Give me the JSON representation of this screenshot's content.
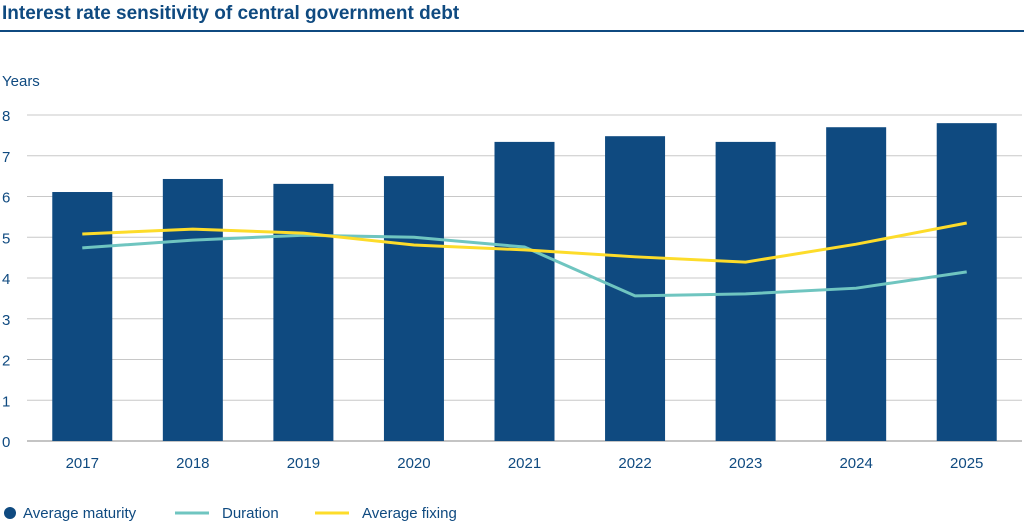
{
  "chart_data": {
    "type": "bar",
    "title": "Interest rate sensitivity of central government debt",
    "ylabel": "Years",
    "ylim": [
      0,
      8
    ],
    "yticks": [
      0,
      1,
      2,
      3,
      4,
      5,
      6,
      7,
      8
    ],
    "grid": true,
    "legend_placement": "bottom-left",
    "categories": [
      "2017",
      "2018",
      "2019",
      "2020",
      "2021",
      "2022",
      "2023",
      "2024",
      "2025"
    ],
    "series": [
      {
        "name": "Average maturity",
        "type": "bar",
        "color": "#0f4a80",
        "values": [
          6.11,
          6.43,
          6.31,
          6.5,
          7.34,
          7.48,
          7.34,
          7.7,
          7.8
        ]
      },
      {
        "name": "Duration",
        "type": "line",
        "color": "#6fc5c0",
        "values": [
          4.74,
          4.93,
          5.05,
          5.0,
          4.76,
          3.56,
          3.61,
          3.75,
          4.15
        ]
      },
      {
        "name": "Average fixing",
        "type": "line",
        "color": "#fddc2a",
        "values": [
          5.08,
          5.2,
          5.1,
          4.81,
          4.69,
          4.52,
          4.39,
          4.83,
          5.35
        ]
      }
    ]
  }
}
